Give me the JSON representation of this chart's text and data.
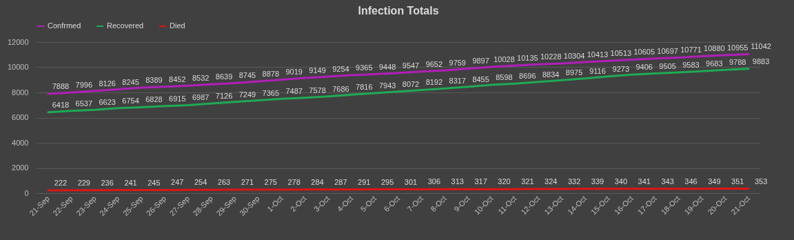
{
  "chart_data": {
    "type": "line",
    "title": "Infection Totals",
    "categories": [
      "21-Sep",
      "22-Sep",
      "23-Sep",
      "24-Sep",
      "25-Sep",
      "26-Sep",
      "27-Sep",
      "28-Sep",
      "29-Sep",
      "30-Sep",
      "1-Oct",
      "2-Oct",
      "3-Oct",
      "4-Oct",
      "5-Oct",
      "6-Oct",
      "7-Oct",
      "8-Oct",
      "9-Oct",
      "10-Oct",
      "11-Oct",
      "12-Oct",
      "13-Oct",
      "14-Oct",
      "15-Oct",
      "16-Oct",
      "17-Oct",
      "18-Oct",
      "19-Oct",
      "20-Oct",
      "21-Oct"
    ],
    "series": [
      {
        "name": "Confrmed",
        "color": "#b01fb8",
        "values": [
          7888,
          7996,
          8126,
          8245,
          8389,
          8452,
          8532,
          8639,
          8745,
          8878,
          9019,
          9149,
          9254,
          9365,
          9448,
          9547,
          9652,
          9759,
          9897,
          10028,
          10135,
          10228,
          10304,
          10413,
          10513,
          10605,
          10697,
          10771,
          10880,
          10955,
          11042
        ]
      },
      {
        "name": "Recovered",
        "color": "#1faa55",
        "values": [
          6418,
          6537,
          6623,
          6754,
          6828,
          6915,
          6987,
          7126,
          7249,
          7365,
          7487,
          7578,
          7686,
          7816,
          7943,
          8072,
          8192,
          8317,
          8455,
          8598,
          8696,
          8834,
          8975,
          9116,
          9273,
          9406,
          9505,
          9583,
          9683,
          9788,
          9883
        ]
      },
      {
        "name": "Died",
        "color": "#e01414",
        "values": [
          222,
          229,
          236,
          241,
          245,
          247,
          254,
          263,
          271,
          275,
          278,
          284,
          287,
          291,
          295,
          301,
          306,
          313,
          317,
          320,
          321,
          324,
          332,
          339,
          340,
          341,
          343,
          346,
          349,
          351,
          353
        ]
      }
    ],
    "ylim": [
      0,
      12000
    ],
    "yticks": [
      0,
      2000,
      4000,
      6000,
      8000,
      10000,
      12000
    ],
    "grid": "y",
    "legend": "top",
    "data_labels": true
  }
}
